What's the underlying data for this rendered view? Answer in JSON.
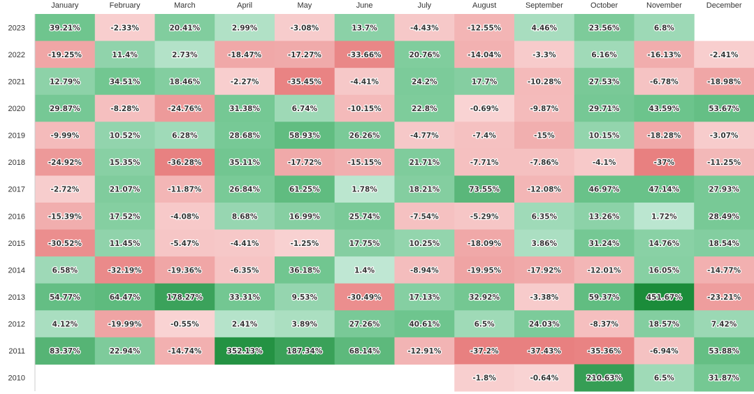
{
  "chart_data": {
    "type": "heatmap",
    "title": "",
    "xlabel": "",
    "ylabel": "",
    "months": [
      "January",
      "February",
      "March",
      "April",
      "May",
      "June",
      "July",
      "August",
      "September",
      "October",
      "November",
      "December"
    ],
    "years": [
      "2023",
      "2022",
      "2021",
      "2020",
      "2019",
      "2018",
      "2017",
      "2016",
      "2015",
      "2014",
      "2013",
      "2012",
      "2011",
      "2010"
    ],
    "values": [
      [
        39.21,
        -2.33,
        20.41,
        2.99,
        -3.08,
        13.7,
        -4.43,
        -12.55,
        4.46,
        23.56,
        6.8,
        null
      ],
      [
        -19.25,
        11.4,
        2.73,
        -18.47,
        -17.27,
        -33.66,
        20.76,
        -14.04,
        -3.3,
        6.16,
        -16.13,
        -2.41
      ],
      [
        12.79,
        34.51,
        18.46,
        -2.27,
        -35.45,
        -4.41,
        24.2,
        17.7,
        -10.28,
        27.53,
        -6.78,
        -18.98
      ],
      [
        29.87,
        -8.28,
        -24.76,
        31.38,
        6.74,
        -10.15,
        22.8,
        -0.69,
        -9.87,
        29.71,
        43.59,
        53.67
      ],
      [
        -9.99,
        10.52,
        6.28,
        28.68,
        58.93,
        26.26,
        -4.77,
        -7.4,
        -15,
        10.15,
        -18.28,
        -3.07
      ],
      [
        -24.92,
        15.35,
        -36.28,
        35.11,
        -17.72,
        -15.15,
        21.71,
        -7.71,
        -7.86,
        -4.1,
        -37,
        -11.25
      ],
      [
        -2.72,
        21.07,
        -11.87,
        26.84,
        61.25,
        1.78,
        18.21,
        73.55,
        -12.08,
        46.97,
        47.14,
        27.93
      ],
      [
        -15.39,
        17.52,
        -4.08,
        8.68,
        16.99,
        25.74,
        -7.54,
        -5.29,
        6.35,
        13.26,
        1.72,
        28.49
      ],
      [
        -30.52,
        11.45,
        -5.47,
        -4.41,
        -1.25,
        17.75,
        10.25,
        -18.09,
        3.86,
        31.24,
        14.76,
        18.54
      ],
      [
        6.58,
        -32.19,
        -19.36,
        -6.35,
        36.18,
        1.4,
        -8.94,
        -19.95,
        -17.92,
        -12.01,
        16.05,
        -14.77
      ],
      [
        54.77,
        64.47,
        178.27,
        33.31,
        9.53,
        -30.49,
        17.13,
        32.92,
        -3.38,
        59.37,
        451.67,
        -23.21
      ],
      [
        4.12,
        -19.99,
        -0.55,
        2.41,
        3.89,
        27.26,
        40.61,
        6.5,
        24.03,
        -8.37,
        18.57,
        7.42
      ],
      [
        83.37,
        22.94,
        -14.74,
        352.13,
        187.34,
        68.14,
        -12.91,
        -37.2,
        -37.43,
        -35.36,
        -6.94,
        53.88
      ],
      [
        null,
        null,
        null,
        null,
        null,
        null,
        null,
        -1.8,
        -0.64,
        210.63,
        6.5,
        31.87
      ]
    ],
    "value_suffix": "%",
    "grid": false,
    "legend": "none",
    "colors": {
      "negative_strong": "#e88080",
      "negative_light": "#f9d5d5",
      "positive_light": "#d8f2e8",
      "positive_mid": "#6cc48c",
      "positive_strong": "#1b8c3a",
      "text": "#333333",
      "tick": "#333333"
    }
  }
}
